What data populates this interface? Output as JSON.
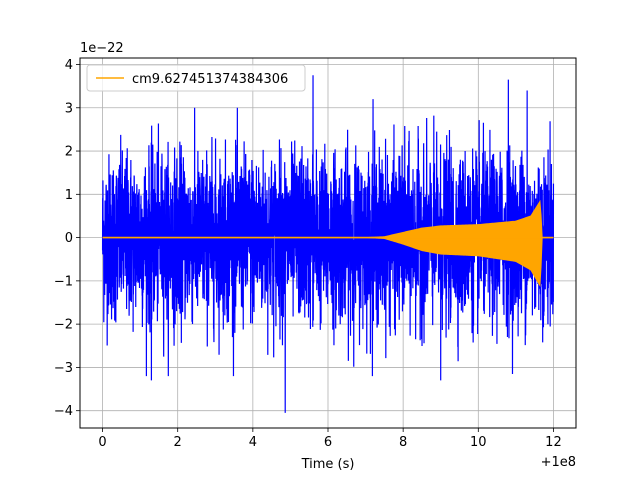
{
  "chart_data": {
    "type": "line",
    "title": "",
    "xlabel": "Time (s)",
    "ylabel": "",
    "x_offset_label": "+1e8",
    "y_scale_label": "1e−22",
    "xlim": [
      -0.6,
      12.6
    ],
    "ylim": [
      -4.4,
      4.15
    ],
    "x_ticks": [
      0,
      2,
      4,
      6,
      8,
      10,
      12
    ],
    "x_tick_labels": [
      "0",
      "2",
      "4",
      "6",
      "8",
      "10",
      "12"
    ],
    "y_ticks": [
      -4,
      -3,
      -2,
      -1,
      0,
      1,
      2,
      3,
      4
    ],
    "y_tick_labels": [
      "−4",
      "−3",
      "−2",
      "−1",
      "0",
      "1",
      "2",
      "3",
      "4"
    ],
    "grid": true,
    "legend_position": "top-left",
    "series": [
      {
        "name": "",
        "color": "#0000ff",
        "description_values": {
          "x_range": [
            0,
            12
          ],
          "typical_amplitude": 1.0,
          "max": 3.75,
          "min": -4.05
        }
      },
      {
        "name": "cm9.627451374384306",
        "color": "#ffa500",
        "envelope": {
          "x": [
            0,
            7.0,
            7.5,
            8.0,
            8.5,
            9.0,
            10.0,
            11.0,
            11.4,
            11.6,
            11.65,
            11.7,
            12.0
          ],
          "upper": [
            0,
            0,
            0.02,
            0.12,
            0.22,
            0.27,
            0.3,
            0.38,
            0.5,
            0.78,
            0.85,
            0,
            0
          ],
          "lower": [
            0,
            0,
            -0.02,
            -0.15,
            -0.3,
            -0.38,
            -0.42,
            -0.55,
            -0.75,
            -1.05,
            -1.12,
            0,
            0
          ]
        }
      }
    ]
  }
}
